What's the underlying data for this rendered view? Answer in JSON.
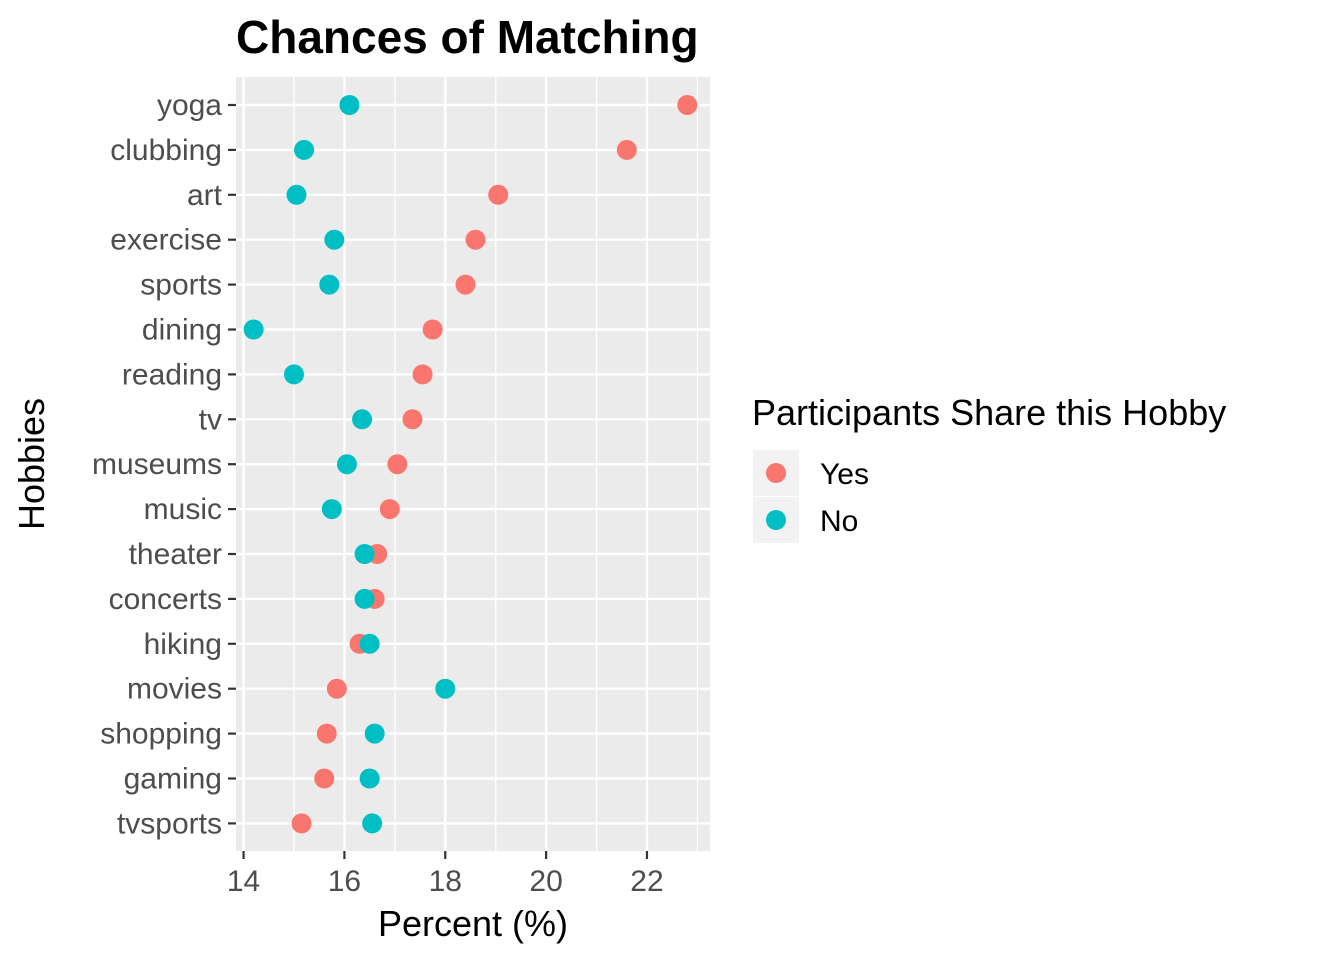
{
  "chart_data": {
    "type": "scatter",
    "title": "Chances of Matching",
    "xlabel": "Percent (%)",
    "ylabel": "Hobbies",
    "xlim": [
      13.85,
      23.25
    ],
    "x_ticks": [
      14,
      16,
      18,
      20,
      22
    ],
    "x_tick_labels": [
      "14",
      "16",
      "18",
      "20",
      "22"
    ],
    "grid": true,
    "legend_position": "right",
    "legend_title": "Participants Share this Hobby",
    "categories": [
      "yoga",
      "clubbing",
      "art",
      "exercise",
      "sports",
      "dining",
      "reading",
      "tv",
      "museums",
      "music",
      "theater",
      "concerts",
      "hiking",
      "movies",
      "shopping",
      "gaming",
      "tvsports"
    ],
    "series": [
      {
        "name": "Yes",
        "color": "#f8766d",
        "values": [
          22.8,
          21.6,
          19.05,
          18.6,
          18.4,
          17.75,
          17.55,
          17.35,
          17.05,
          16.9,
          16.65,
          16.6,
          16.3,
          15.85,
          15.65,
          15.6,
          15.15
        ]
      },
      {
        "name": "No",
        "color": "#00bfc4",
        "values": [
          16.1,
          15.2,
          15.05,
          15.8,
          15.7,
          14.2,
          15.0,
          16.35,
          16.05,
          15.75,
          16.4,
          16.4,
          16.5,
          18.0,
          16.6,
          16.5,
          16.55
        ]
      }
    ]
  }
}
